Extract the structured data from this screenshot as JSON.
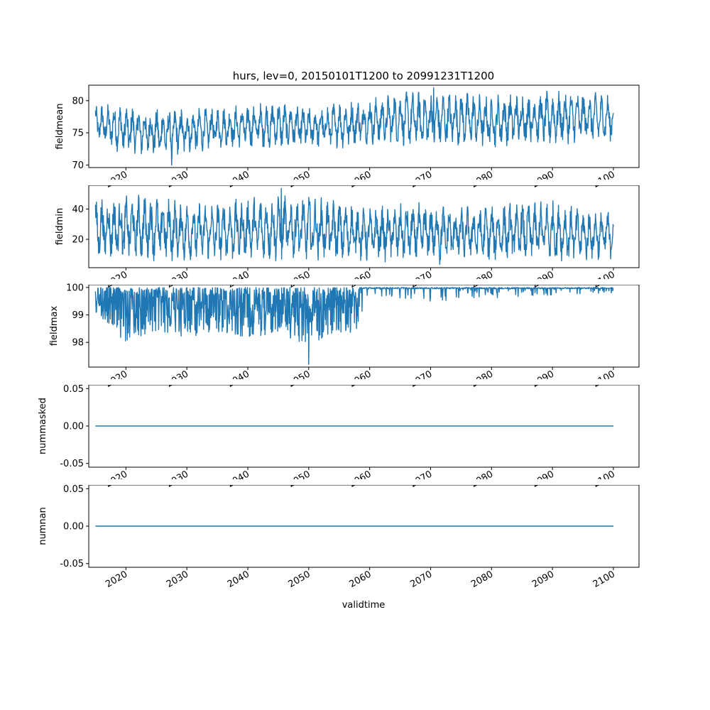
{
  "title": "hurs, lev=0, 20150101T1200 to 20991231T1200",
  "xlabel": "validtime",
  "x_ticks": [
    "2020",
    "2030",
    "2040",
    "2050",
    "2060",
    "2070",
    "2080",
    "2090",
    "2100"
  ],
  "series_color": "#1f77b4",
  "chart_data": [
    {
      "type": "line",
      "ylabel": "fieldmean",
      "x_range": [
        "2015-01-01",
        "2099-12-31"
      ],
      "xlim": [
        2013.9,
        2104.2
      ],
      "ylim": [
        69.6,
        82.4
      ],
      "y_ticks": [
        70,
        75,
        80
      ],
      "tick_format": "int",
      "envelope": {
        "note_x": [
          2015,
          2020,
          2025,
          2030,
          2035,
          2040,
          2045,
          2050,
          2055,
          2060,
          2065,
          2070,
          2075,
          2080,
          2085,
          2090,
          2095,
          2100
        ],
        "low": [
          73.5,
          71.5,
          71.0,
          71.5,
          72.5,
          72.5,
          72.5,
          72.5,
          72.5,
          73.0,
          73.0,
          72.5,
          73.0,
          72.5,
          73.0,
          73.0,
          73.5,
          73.5
        ],
        "high": [
          79.5,
          79.5,
          79.0,
          79.0,
          79.0,
          79.5,
          80.0,
          79.0,
          80.0,
          80.5,
          81.5,
          81.5,
          81.5,
          81.0,
          81.5,
          81.5,
          81.5,
          81.0
        ],
        "min_point": [
          2027.5,
          70.0
        ],
        "max_point": [
          2070.5,
          82.0
        ]
      }
    },
    {
      "type": "line",
      "ylabel": "fieldmin",
      "x_range": [
        "2015-01-01",
        "2099-12-31"
      ],
      "xlim": [
        2013.9,
        2104.2
      ],
      "ylim": [
        1.3,
        55.6
      ],
      "y_ticks": [
        20,
        40
      ],
      "tick_format": "int",
      "envelope": {
        "note_x": [
          2015,
          2020,
          2025,
          2030,
          2035,
          2040,
          2045,
          2050,
          2055,
          2060,
          2065,
          2070,
          2075,
          2080,
          2085,
          2090,
          2095,
          2100
        ],
        "low": [
          6,
          5,
          5,
          5,
          5,
          5,
          5,
          5,
          5,
          5,
          5,
          4,
          5,
          5,
          5,
          5,
          5,
          7
        ],
        "high": [
          48,
          50,
          50,
          45,
          45,
          48,
          50,
          49,
          46,
          42,
          44,
          45,
          42,
          43,
          45,
          46,
          40,
          40
        ],
        "max_point": [
          2045.5,
          53.5
        ],
        "min_point": [
          2071.5,
          3.5
        ]
      }
    },
    {
      "type": "line",
      "ylabel": "fieldmax",
      "x_range": [
        "2015-01-01",
        "2099-12-31"
      ],
      "xlim": [
        2013.9,
        2104.2
      ],
      "ylim": [
        97.1,
        100.1
      ],
      "y_ticks": [
        98,
        99,
        100
      ],
      "tick_format": "int",
      "envelope": {
        "note_x": [
          2015,
          2020,
          2025,
          2030,
          2035,
          2040,
          2045,
          2050,
          2055,
          2058,
          2060,
          2070,
          2080,
          2090,
          2100
        ],
        "low": [
          99.0,
          98.0,
          98.3,
          98.2,
          98.3,
          98.2,
          98.3,
          97.9,
          98.3,
          98.3,
          99.7,
          99.5,
          99.6,
          99.7,
          99.8
        ],
        "high": [
          100,
          100,
          100,
          100,
          100,
          100,
          100,
          100,
          100,
          100,
          100,
          100,
          100,
          100,
          100
        ],
        "min_point": [
          2050.0,
          97.2
        ],
        "regime_change_x": 2058.3
      }
    },
    {
      "type": "line",
      "ylabel": "nummasked",
      "x_range": [
        "2015-01-01",
        "2099-12-31"
      ],
      "xlim": [
        2013.9,
        2104.2
      ],
      "ylim": [
        -0.055,
        0.055
      ],
      "y_ticks": [
        -0.05,
        0.0,
        0.05
      ],
      "tick_format": "2dp",
      "constant_value": 0.0
    },
    {
      "type": "line",
      "ylabel": "numnan",
      "x_range": [
        "2015-01-01",
        "2099-12-31"
      ],
      "xlim": [
        2013.9,
        2104.2
      ],
      "ylim": [
        -0.055,
        0.055
      ],
      "y_ticks": [
        -0.05,
        0.0,
        0.05
      ],
      "tick_format": "2dp",
      "constant_value": 0.0
    }
  ]
}
